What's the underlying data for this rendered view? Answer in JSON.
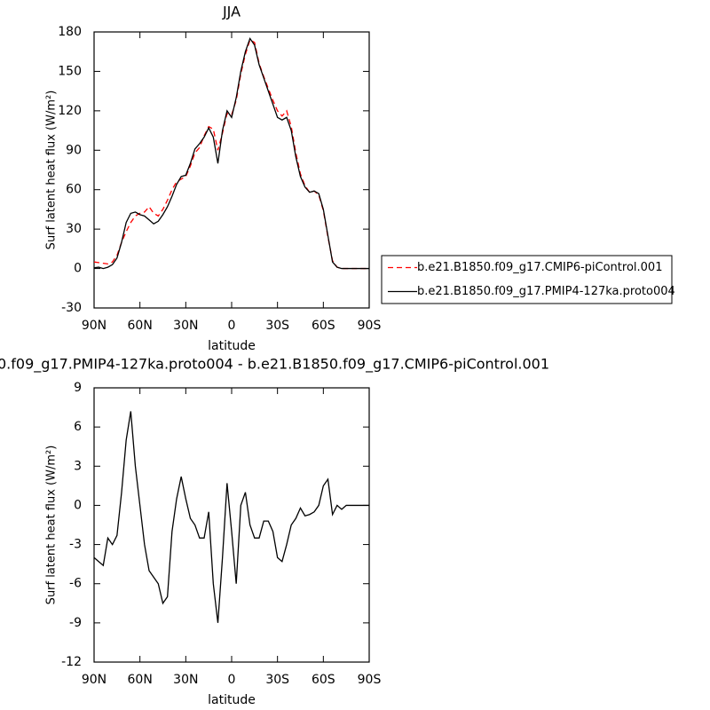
{
  "chart_data": [
    {
      "type": "line",
      "title": "JJA",
      "xlabel": "latitude",
      "ylabel": "Surf latent heat flux (W/m²)",
      "x": [
        90,
        87,
        84,
        81,
        78,
        75,
        72,
        69,
        66,
        63,
        60,
        57,
        54,
        51,
        48,
        45,
        42,
        39,
        36,
        33,
        30,
        27,
        24,
        21,
        18,
        15,
        12,
        9,
        6,
        3,
        0,
        -3,
        -6,
        -9,
        -12,
        -15,
        -18,
        -21,
        -24,
        -27,
        -30,
        -33,
        -36,
        -39,
        -42,
        -45,
        -48,
        -51,
        -54,
        -57,
        -60,
        -63,
        -66,
        -69,
        -72,
        -75,
        -78,
        -81,
        -84,
        -87,
        -90
      ],
      "xlim": [
        90,
        -90
      ],
      "xticks": [
        {
          "value": 90,
          "label": "90N"
        },
        {
          "value": 60,
          "label": "60N"
        },
        {
          "value": 30,
          "label": "30N"
        },
        0,
        {
          "value": -30,
          "label": "30S"
        },
        {
          "value": -60,
          "label": "60S"
        },
        {
          "value": -90,
          "label": "90S"
        }
      ],
      "ylim": [
        -30,
        180
      ],
      "yticks": [
        -30,
        0,
        30,
        60,
        90,
        120,
        150,
        180
      ],
      "legend": "right",
      "series": [
        {
          "name": "b.e21.B1850.f09_g17.CMIP6-piControl.001",
          "color": "#ff0000",
          "line_style": "dashed",
          "values": [
            5,
            4.5,
            4,
            3.5,
            5,
            10,
            20,
            28,
            35,
            40,
            42,
            43,
            47,
            42,
            40,
            45,
            52,
            60,
            66,
            68,
            70,
            78,
            88,
            92,
            101,
            108,
            106,
            90,
            103,
            118,
            117,
            128,
            148,
            163,
            174,
            172,
            156,
            146,
            137,
            128,
            120,
            116,
            120,
            108,
            88,
            72,
            63,
            58,
            59,
            56,
            44,
            24,
            6,
            1,
            0,
            0,
            0,
            0,
            0,
            0,
            0
          ]
        },
        {
          "name": "b.e21.B1850.f09_g17.PMIP4-127ka.proto004",
          "color": "#000000",
          "line_style": "solid",
          "values": [
            0.5,
            1,
            0,
            1,
            3,
            8,
            20,
            35,
            42,
            43,
            41,
            40,
            37,
            34,
            36,
            41,
            47,
            55,
            64,
            70,
            71,
            80,
            91,
            95,
            100,
            107,
            100,
            80,
            105,
            120,
            115,
            130,
            150,
            165,
            175,
            170,
            155,
            145,
            135,
            125,
            115,
            113,
            115,
            105,
            85,
            70,
            62,
            58,
            59,
            57,
            45,
            25,
            5,
            1,
            0,
            0,
            0,
            0,
            0,
            0,
            0
          ]
        }
      ]
    },
    {
      "type": "line",
      "title": "0.f09_g17.PMIP4-127ka.proto004 - b.e21.B1850.f09_g17.CMIP6-piControl.001",
      "xlabel": "latitude",
      "ylabel": "Surf latent heat flux (W/m²)",
      "x": [
        90,
        87,
        84,
        81,
        78,
        75,
        72,
        69,
        66,
        63,
        60,
        57,
        54,
        51,
        48,
        45,
        42,
        39,
        36,
        33,
        30,
        27,
        24,
        21,
        18,
        15,
        12,
        9,
        6,
        3,
        0,
        -3,
        -6,
        -9,
        -12,
        -15,
        -18,
        -21,
        -24,
        -27,
        -30,
        -33,
        -36,
        -39,
        -42,
        -45,
        -48,
        -51,
        -54,
        -57,
        -60,
        -63,
        -66,
        -69,
        -72,
        -75,
        -78,
        -81,
        -84,
        -87,
        -90
      ],
      "xlim": [
        90,
        -90
      ],
      "xticks": [
        {
          "value": 90,
          "label": "90N"
        },
        {
          "value": 60,
          "label": "60N"
        },
        {
          "value": 30,
          "label": "30N"
        },
        0,
        {
          "value": -30,
          "label": "30S"
        },
        {
          "value": -60,
          "label": "60S"
        },
        {
          "value": -90,
          "label": "90S"
        }
      ],
      "ylim": [
        -12,
        9
      ],
      "yticks": [
        -12,
        -9,
        -6,
        -3,
        0,
        3,
        6,
        9
      ],
      "color": "#000000",
      "values": [
        -4,
        -4.3,
        -4.6,
        -2.5,
        -3,
        -2.3,
        1,
        5,
        7.2,
        3,
        0,
        -3,
        -5,
        -5.5,
        -6,
        -7.5,
        -7,
        -2,
        0.5,
        2.2,
        0.5,
        -1,
        -1.5,
        -2.5,
        -2.5,
        -0.5,
        -6,
        -9,
        -4,
        1.7,
        -2,
        -6,
        0,
        1,
        -1.5,
        -2.5,
        -2.5,
        -1.2,
        -1.2,
        -2,
        -4,
        -4.3,
        -3,
        -1.5,
        -1,
        -0.2,
        -0.8,
        -0.7,
        -0.5,
        0,
        1.5,
        2,
        -0.7,
        0,
        -0.3,
        0,
        0,
        0,
        0,
        0,
        0
      ]
    }
  ]
}
